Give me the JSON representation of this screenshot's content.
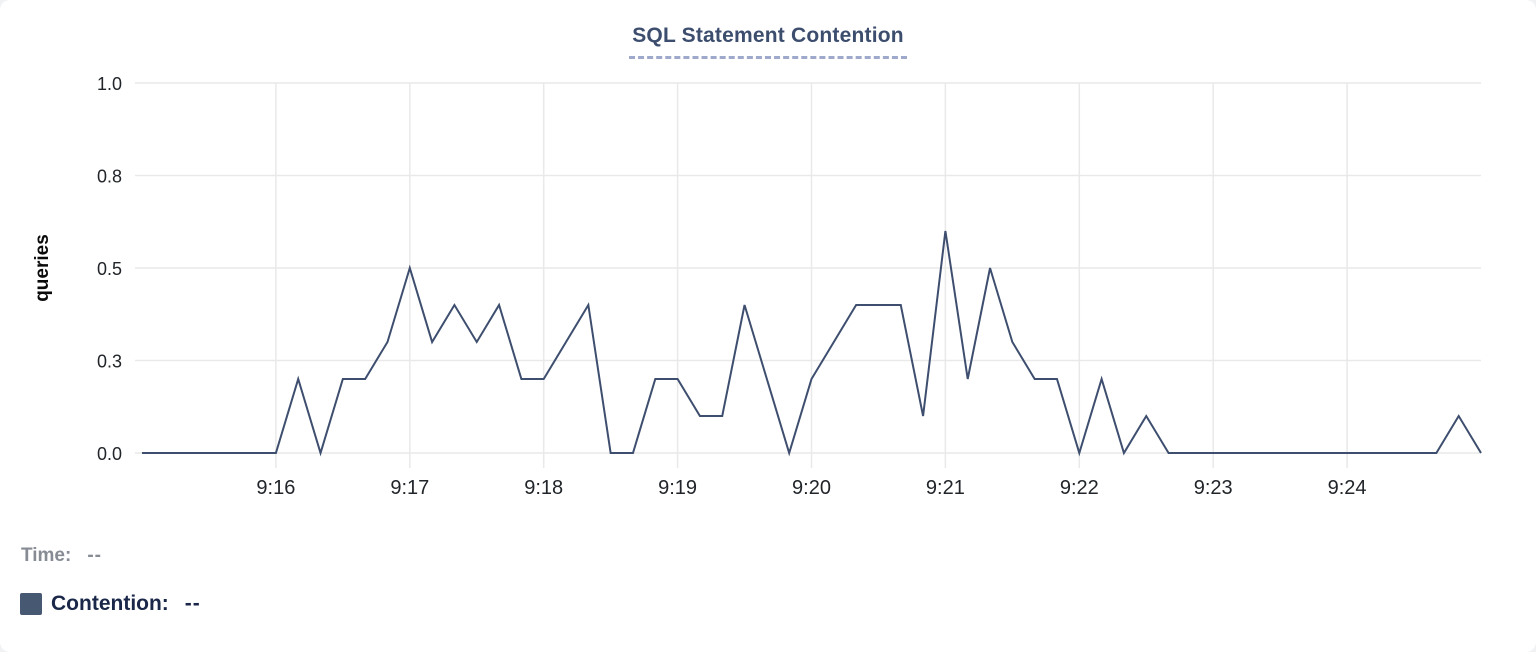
{
  "title": "SQL Statement Contention",
  "legend": {
    "time_label": "Time:",
    "time_value": "--",
    "series": {
      "label": "Contention:",
      "value": "--",
      "swatch_color": "#475872"
    }
  },
  "colors": {
    "line": "#3e4e6e",
    "grid": "#e9e9ea",
    "tick_text": "#212529",
    "y_axis_title_text": "#0a0a0a",
    "title_text": "#3c4d6e",
    "title_underline": "#9fa9cb",
    "card_background": "#ffffff",
    "page_background": "#f1f2f4"
  },
  "chart_data": {
    "type": "line",
    "title": "SQL Statement Contention",
    "xlabel": "",
    "ylabel": "queries",
    "ylim": [
      0,
      1
    ],
    "grid": true,
    "legend_position": "bottom-left",
    "yticks": [
      {
        "value": 0.0,
        "label": "0.0"
      },
      {
        "value": 0.25,
        "label": "0.3"
      },
      {
        "value": 0.5,
        "label": "0.5"
      },
      {
        "value": 0.75,
        "label": "0.8"
      },
      {
        "value": 1.0,
        "label": "1.0"
      }
    ],
    "xticks": [
      {
        "time": "9:16:00",
        "label": "9:16"
      },
      {
        "time": "9:17:00",
        "label": "9:17"
      },
      {
        "time": "9:18:00",
        "label": "9:18"
      },
      {
        "time": "9:19:00",
        "label": "9:19"
      },
      {
        "time": "9:20:00",
        "label": "9:20"
      },
      {
        "time": "9:21:00",
        "label": "9:21"
      },
      {
        "time": "9:22:00",
        "label": "9:22"
      },
      {
        "time": "9:23:00",
        "label": "9:23"
      },
      {
        "time": "9:24:00",
        "label": "9:24"
      }
    ],
    "x": [
      "9:15:00",
      "9:15:10",
      "9:15:20",
      "9:15:30",
      "9:15:40",
      "9:15:50",
      "9:16:00",
      "9:16:10",
      "9:16:20",
      "9:16:30",
      "9:16:40",
      "9:16:50",
      "9:17:00",
      "9:17:10",
      "9:17:20",
      "9:17:30",
      "9:17:40",
      "9:17:50",
      "9:18:00",
      "9:18:10",
      "9:18:20",
      "9:18:30",
      "9:18:40",
      "9:18:50",
      "9:19:00",
      "9:19:10",
      "9:19:20",
      "9:19:30",
      "9:19:40",
      "9:19:50",
      "9:20:00",
      "9:20:10",
      "9:20:20",
      "9:20:30",
      "9:20:40",
      "9:20:50",
      "9:21:00",
      "9:21:10",
      "9:21:20",
      "9:21:30",
      "9:21:40",
      "9:21:50",
      "9:22:00",
      "9:22:10",
      "9:22:20",
      "9:22:30",
      "9:22:40",
      "9:22:50",
      "9:23:00",
      "9:23:10",
      "9:23:20",
      "9:23:30",
      "9:23:40",
      "9:23:50",
      "9:24:00",
      "9:24:10",
      "9:24:20",
      "9:24:30",
      "9:24:40",
      "9:24:50",
      "9:25:00"
    ],
    "series": [
      {
        "name": "Contention",
        "unit": "queries",
        "values": [
          0,
          0,
          0,
          0,
          0,
          0,
          0,
          0.2,
          0,
          0.2,
          0.2,
          0.3,
          0.5,
          0.3,
          0.4,
          0.3,
          0.4,
          0.2,
          0.2,
          0.3,
          0.4,
          0,
          0,
          0.2,
          0.2,
          0.1,
          0.1,
          0.4,
          0.2,
          0,
          0.2,
          0.3,
          0.4,
          0.4,
          0.4,
          0.1,
          0.6,
          0.2,
          0.5,
          0.3,
          0.2,
          0.2,
          0,
          0.2,
          0,
          0.1,
          0,
          0,
          0,
          0,
          0,
          0,
          0,
          0,
          0,
          0,
          0,
          0,
          0,
          0.1,
          0
        ]
      }
    ]
  }
}
